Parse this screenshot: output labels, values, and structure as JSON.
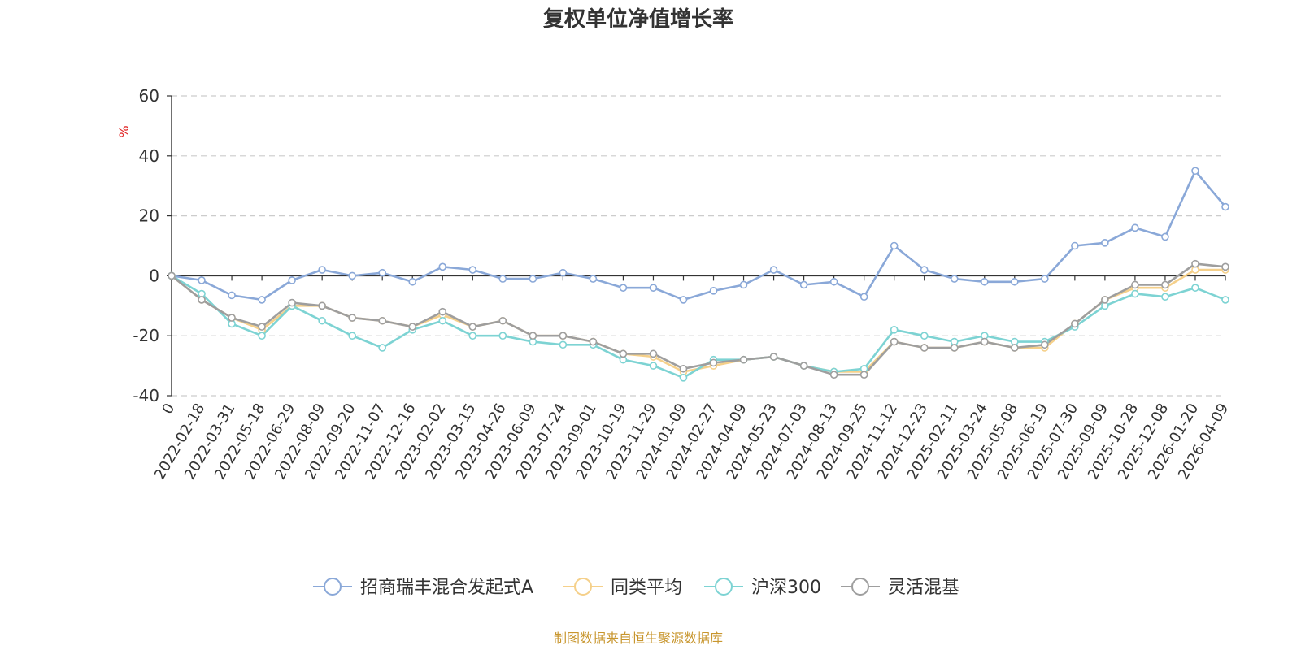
{
  "chart_data": {
    "type": "line",
    "title": "复权单位净值增长率",
    "ylabel": "%",
    "ylim": [
      -40,
      60
    ],
    "yticks": [
      60,
      40,
      20,
      0,
      -20,
      -40
    ],
    "grid": true,
    "legend_position": "bottom-center",
    "source": "制图数据来自恒生聚源数据库",
    "x_tick_labels": [
      "0",
      "2022-02-18",
      "2022-03-31",
      "2022-05-18",
      "2022-06-29",
      "2022-08-09",
      "2022-09-20",
      "2022-11-07",
      "2022-12-16",
      "2023-02-02",
      "2023-03-15",
      "2023-04-26",
      "2023-06-09",
      "2023-07-24",
      "2023-09-01",
      "2023-10-19",
      "2023-11-29",
      "2024-01-09",
      "2024-02-27",
      "2024-04-09",
      "2024-05-23",
      "2024-07-03",
      "2024-08-13",
      "2024-09-25",
      "2024-11-12",
      "2024-12-23",
      "2025-02-11",
      "2025-03-24",
      "2025-05-08",
      "2025-06-19",
      "2025-07-30",
      "2025-09-09",
      "2025-10-28",
      "2025-12-08",
      "2026-01-20",
      "2026-04-09"
    ],
    "x": [
      "0",
      "2022-02-18",
      "2022-03-31",
      "2022-05-18",
      "2022-06-29",
      "2022-08-09",
      "2022-09-20",
      "2022-11-07",
      "2022-12-16",
      "2023-02-02",
      "2023-03-15",
      "2023-04-26",
      "2023-06-09",
      "2023-07-24",
      "2023-09-01",
      "2023-10-19",
      "2023-11-29",
      "2024-01-09",
      "2024-02-27",
      "2024-04-09",
      "2024-05-23",
      "2024-07-03",
      "2024-08-13",
      "2024-09-25",
      "2024-11-12",
      "2024-12-23",
      "2025-02-11",
      "2025-03-24",
      "2025-05-08",
      "2025-06-19",
      "2025-07-30",
      "2025-09-09",
      "2025-10-28",
      "2025-12-08",
      "2026-01-20",
      "2026-04-09"
    ],
    "series": [
      {
        "name": "招商瑞丰混合发起式A",
        "color": "#8aa8d8",
        "values": [
          0,
          -1.5,
          -6.5,
          -8,
          -1.5,
          2,
          0,
          1,
          -2,
          3,
          2,
          -1,
          -1,
          1,
          -1,
          -4,
          -4,
          -8,
          -5,
          -3,
          2,
          -3,
          -2,
          -7,
          10,
          2,
          -1,
          -2,
          -2,
          -1,
          10,
          11,
          16,
          13,
          35,
          23
        ]
      },
      {
        "name": "同类平均",
        "color": "#f5d08a",
        "values": [
          0,
          -8,
          -14,
          -18,
          -10,
          -10,
          -14,
          -15,
          -17,
          -13,
          -17,
          -15,
          -20,
          -20,
          -22,
          -26,
          -27,
          -32,
          -30,
          -28,
          -27,
          -30,
          -32,
          -32,
          -22,
          -24,
          -24,
          -22,
          -24,
          -24,
          -16,
          -8,
          -4,
          -4,
          2,
          2
        ]
      },
      {
        "name": "沪深300",
        "color": "#7dd3d3",
        "values": [
          0,
          -6,
          -16,
          -20,
          -10,
          -15,
          -20,
          -24,
          -18,
          -15,
          -20,
          -20,
          -22,
          -23,
          -23,
          -28,
          -30,
          -34,
          -28,
          -28,
          -27,
          -30,
          -32,
          -31,
          -18,
          -20,
          -22,
          -20,
          -22,
          -22,
          -17,
          -10,
          -6,
          -7,
          -4,
          -8
        ]
      },
      {
        "name": "灵活混基",
        "color": "#9e9e9e",
        "values": [
          0,
          -8,
          -14,
          -17,
          -9,
          -10,
          -14,
          -15,
          -17,
          -12,
          -17,
          -15,
          -20,
          -20,
          -22,
          -26,
          -26,
          -31,
          -29,
          -28,
          -27,
          -30,
          -33,
          -33,
          -22,
          -24,
          -24,
          -22,
          -24,
          -23,
          -16,
          -8,
          -3,
          -3,
          4,
          3
        ]
      }
    ]
  }
}
